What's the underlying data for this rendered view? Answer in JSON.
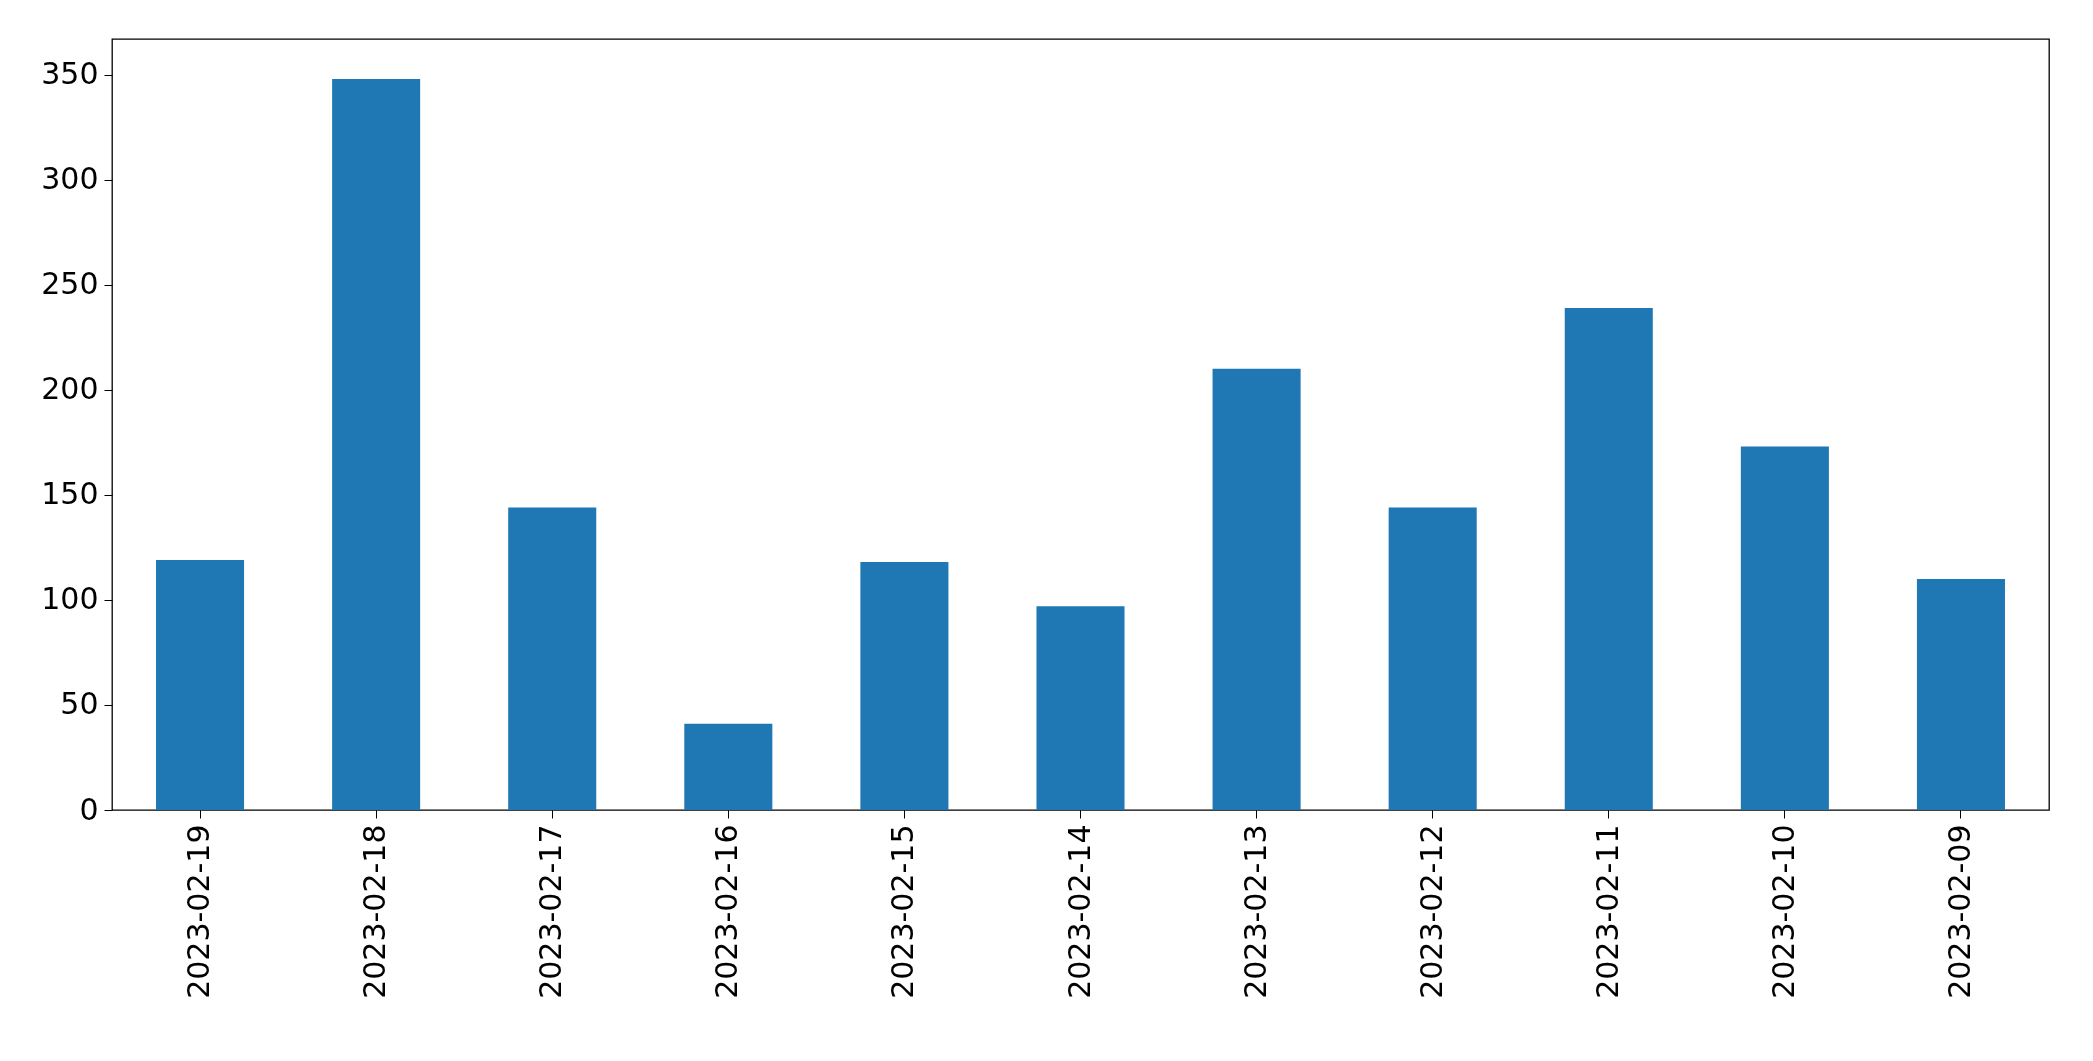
{
  "chart_data": {
    "type": "bar",
    "categories": [
      "2023-02-19",
      "2023-02-18",
      "2023-02-17",
      "2023-02-16",
      "2023-02-15",
      "2023-02-14",
      "2023-02-13",
      "2023-02-12",
      "2023-02-11",
      "2023-02-10",
      "2023-02-09"
    ],
    "values": [
      119,
      348,
      144,
      41,
      118,
      97,
      210,
      144,
      239,
      173,
      110
    ],
    "color": "#1f77b4",
    "ylim": [
      0,
      367
    ],
    "yticks": [
      0,
      50,
      100,
      150,
      200,
      250,
      300,
      350
    ],
    "grid": false
  }
}
